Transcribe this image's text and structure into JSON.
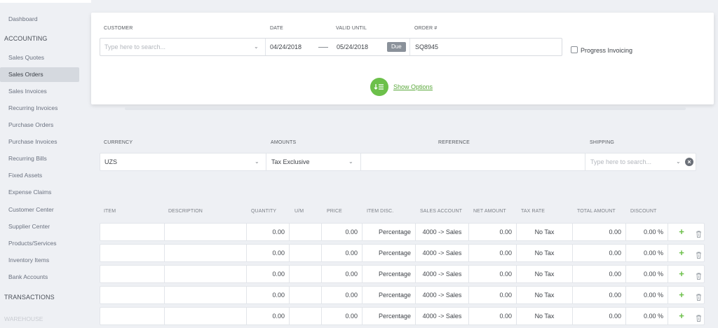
{
  "sidebar": {
    "items": [
      {
        "label": "Dashboard",
        "type": "item"
      },
      {
        "label": "ACCOUNTING",
        "type": "head"
      },
      {
        "label": "Sales Quotes",
        "type": "item"
      },
      {
        "label": "Sales Orders",
        "type": "item",
        "active": true
      },
      {
        "label": "Sales Invoices",
        "type": "item"
      },
      {
        "label": "Recurring Invoices",
        "type": "item"
      },
      {
        "label": "Purchase Orders",
        "type": "item"
      },
      {
        "label": "Purchase Invoices",
        "type": "item"
      },
      {
        "label": "Recurring Bills",
        "type": "item"
      },
      {
        "label": "Fixed Assets",
        "type": "item"
      },
      {
        "label": "Expense Claims",
        "type": "item"
      },
      {
        "label": "Customer Center",
        "type": "item"
      },
      {
        "label": "Supplier Center",
        "type": "item"
      },
      {
        "label": "Products/Services",
        "type": "item"
      },
      {
        "label": "Inventory Items",
        "type": "item"
      },
      {
        "label": "Bank Accounts",
        "type": "item"
      },
      {
        "label": "TRANSACTIONS",
        "type": "head"
      },
      {
        "label": "WAREHOUSE",
        "type": "fade"
      }
    ]
  },
  "order": {
    "customer_label": "CUSTOMER",
    "customer_placeholder": "Type here to search...",
    "date_label": "DATE",
    "date_value": "04/24/2018",
    "valid_label": "VALID UNTIL",
    "valid_value": "05/24/2018",
    "due_badge": "Due",
    "order_label": "ORDER #",
    "order_value": "SQ8945",
    "progress_invoicing": "Progress Invoicing",
    "show_options": "Show Options"
  },
  "settings": {
    "currency_label": "CURRENCY",
    "currency_value": "UZS",
    "amounts_label": "AMOUNTS",
    "amounts_value": "Tax Exclusive",
    "reference_label": "REFERENCE",
    "shipping_label": "SHIPPING",
    "shipping_placeholder": "Type here to search..."
  },
  "table": {
    "headers": [
      "ITEM",
      "DESCRIPTION",
      "QUANTITY",
      "U/M",
      "PRICE",
      "ITEM DISC.",
      "SALES ACCOUNT",
      "NET AMOUNT",
      "TAX RATE",
      "TOTAL AMOUNT",
      "DISCOUNT"
    ],
    "rows": [
      {
        "item": "",
        "description": "",
        "quantity": "0.00",
        "um": "",
        "price": "0.00",
        "disc": "Percentage",
        "account": "4000 -> Sales",
        "net": "0.00",
        "tax": "No Tax",
        "total": "0.00",
        "discount": "0.00 %"
      },
      {
        "item": "",
        "description": "",
        "quantity": "0.00",
        "um": "",
        "price": "0.00",
        "disc": "Percentage",
        "account": "4000 -> Sales",
        "net": "0.00",
        "tax": "No Tax",
        "total": "0.00",
        "discount": "0.00 %"
      },
      {
        "item": "",
        "description": "",
        "quantity": "0.00",
        "um": "",
        "price": "0.00",
        "disc": "Percentage",
        "account": "4000 -> Sales",
        "net": "0.00",
        "tax": "No Tax",
        "total": "0.00",
        "discount": "0.00 %"
      },
      {
        "item": "",
        "description": "",
        "quantity": "0.00",
        "um": "",
        "price": "0.00",
        "disc": "Percentage",
        "account": "4000 -> Sales",
        "net": "0.00",
        "tax": "No Tax",
        "total": "0.00",
        "discount": "0.00 %"
      },
      {
        "item": "",
        "description": "",
        "quantity": "0.00",
        "um": "",
        "price": "0.00",
        "disc": "Percentage",
        "account": "4000 -> Sales",
        "net": "0.00",
        "tax": "No Tax",
        "total": "0.00",
        "discount": "0.00 %"
      }
    ]
  },
  "icons": {
    "chevron": "chevron-down-icon",
    "add": "plus-icon",
    "delete": "trash-icon",
    "clear": "clear-icon",
    "options": "sort-list-icon"
  },
  "colors": {
    "accent_green": "#6cc04a",
    "active_bg": "#d5d9df",
    "badge_gray": "#8a919a"
  }
}
